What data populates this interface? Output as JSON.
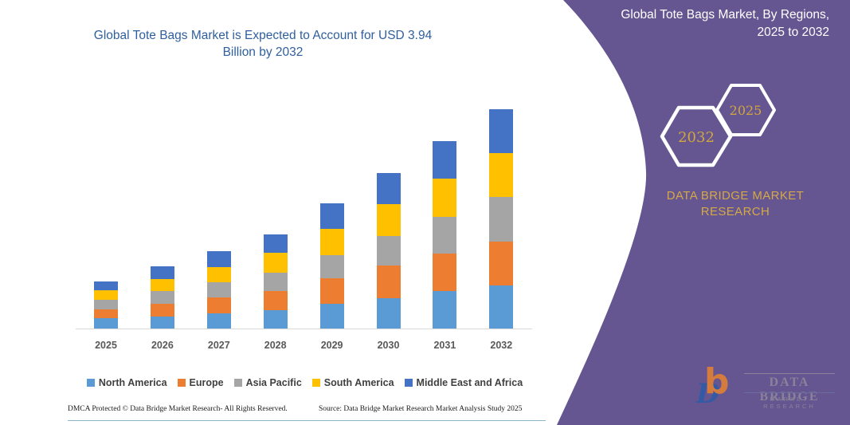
{
  "chart": {
    "title_line1": "Global Tote Bags Market is Expected to Account for USD 3.94",
    "title_line2": "Billion by 2032",
    "title_color": "#2F5F9E"
  },
  "chart_data": {
    "type": "bar",
    "stacked": true,
    "title": "Global Tote Bags Market is Expected to Account for USD 3.94 Billion by 2032",
    "unit": "USD Billion",
    "categories": [
      "2025",
      "2026",
      "2027",
      "2028",
      "2029",
      "2030",
      "2031",
      "2032"
    ],
    "series": [
      {
        "name": "North America",
        "color": "#5B9BD5",
        "values": [
          0.18,
          0.22,
          0.28,
          0.33,
          0.45,
          0.55,
          0.67,
          0.78
        ]
      },
      {
        "name": "Europe",
        "color": "#ED7D31",
        "values": [
          0.17,
          0.23,
          0.28,
          0.35,
          0.46,
          0.58,
          0.68,
          0.79
        ]
      },
      {
        "name": "Asia Pacific",
        "color": "#A5A5A5",
        "values": [
          0.17,
          0.22,
          0.27,
          0.32,
          0.41,
          0.53,
          0.66,
          0.8
        ]
      },
      {
        "name": "South America",
        "color": "#FFC000",
        "values": [
          0.17,
          0.22,
          0.28,
          0.36,
          0.47,
          0.57,
          0.68,
          0.79
        ]
      },
      {
        "name": "Middle East and Africa",
        "color": "#4472C4",
        "values": [
          0.16,
          0.22,
          0.28,
          0.33,
          0.46,
          0.57,
          0.68,
          0.78
        ]
      }
    ],
    "totals": [
      0.85,
      1.11,
      1.39,
      1.69,
      2.25,
      2.8,
      3.37,
      3.94
    ],
    "ylim": [
      0,
      3.94
    ],
    "grid": false,
    "legend_position": "bottom"
  },
  "side_panel": {
    "heading_line1": "Global Tote Bags Market, By Regions,",
    "heading_line2": "2025 to 2032",
    "hex_back_label": "2032",
    "hex_front_label": "2025",
    "brand_line1": "DATA BRIDGE MARKET",
    "brand_line2": "RESEARCH",
    "bg_color": "#655590",
    "gold_color": "#D2A63F"
  },
  "logo": {
    "monogram_b": "b",
    "monogram_d": "D",
    "name": "DATA BRIDGE",
    "subname": "MARKET RESEARCH"
  },
  "footer": {
    "left": "DMCA Protected © Data Bridge Market Research-  All Rights Reserved.",
    "right": "Source: Data Bridge Market Research  Market Analysis Study 2025"
  }
}
